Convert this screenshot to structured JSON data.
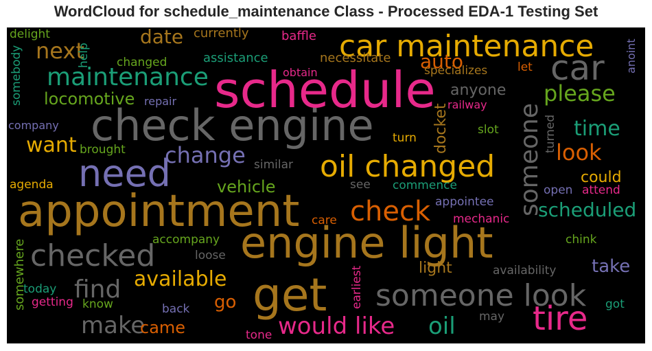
{
  "title": "WordCloud for schedule_maintenance Class - Processed EDA-1 Testing Set",
  "colors": {
    "background": "#000000",
    "palette": [
      "#e7298a",
      "#e6ab02",
      "#a6761d",
      "#666666",
      "#7570b3",
      "#1b9e77",
      "#66a61e",
      "#d95f02"
    ]
  },
  "words": [
    {
      "text": "check engine",
      "color": "#666666"
    },
    {
      "text": "appointment",
      "color": "#a6761d"
    },
    {
      "text": "schedule",
      "color": "#e7298a"
    },
    {
      "text": "engine light",
      "color": "#a6761d"
    },
    {
      "text": "car maintenance",
      "color": "#e6ab02"
    },
    {
      "text": "get",
      "color": "#a6761d"
    },
    {
      "text": "need",
      "color": "#7570b3"
    },
    {
      "text": "car",
      "color": "#666666"
    },
    {
      "text": "oil changed",
      "color": "#e6ab02"
    },
    {
      "text": "someone look",
      "color": "#666666"
    },
    {
      "text": "tire",
      "color": "#e7298a"
    },
    {
      "text": "checked",
      "color": "#666666"
    },
    {
      "text": "maintenance",
      "color": "#1b9e77"
    },
    {
      "text": "someone",
      "color": "#666666"
    },
    {
      "text": "check",
      "color": "#d95f02"
    },
    {
      "text": "please",
      "color": "#66a61e"
    },
    {
      "text": "would like",
      "color": "#e7298a"
    },
    {
      "text": "find",
      "color": "#666666"
    },
    {
      "text": "available",
      "color": "#e6ab02"
    },
    {
      "text": "make",
      "color": "#666666"
    },
    {
      "text": "next",
      "color": "#a6761d"
    },
    {
      "text": "change",
      "color": "#7570b3"
    },
    {
      "text": "want",
      "color": "#e6ab02"
    },
    {
      "text": "oil",
      "color": "#1b9e77"
    },
    {
      "text": "time",
      "color": "#1b9e77"
    },
    {
      "text": "look",
      "color": "#d95f02"
    },
    {
      "text": "date",
      "color": "#a6761d"
    },
    {
      "text": "scheduled",
      "color": "#1b9e77"
    },
    {
      "text": "auto",
      "color": "#d95f02"
    },
    {
      "text": "locomotive",
      "color": "#66a61e"
    },
    {
      "text": "vehicle",
      "color": "#66a61e"
    },
    {
      "text": "take",
      "color": "#7570b3"
    },
    {
      "text": "anyone",
      "color": "#666666"
    },
    {
      "text": "go",
      "color": "#d95f02"
    },
    {
      "text": "could",
      "color": "#e6ab02"
    },
    {
      "text": "came",
      "color": "#d95f02"
    },
    {
      "text": "light",
      "color": "#a6761d"
    },
    {
      "text": "docket",
      "color": "#a6761d"
    },
    {
      "text": "currently",
      "color": "#a6761d"
    },
    {
      "text": "assistance",
      "color": "#1b9e77"
    },
    {
      "text": "necessitate",
      "color": "#a6761d"
    },
    {
      "text": "baffle",
      "color": "#e7298a"
    },
    {
      "text": "specializes",
      "color": "#a6761d"
    },
    {
      "text": "delight",
      "color": "#66a61e"
    },
    {
      "text": "somebody",
      "color": "#1b9e77"
    },
    {
      "text": "help",
      "color": "#1b9e77"
    },
    {
      "text": "changed",
      "color": "#66a61e"
    },
    {
      "text": "obtain",
      "color": "#e7298a"
    },
    {
      "text": "let",
      "color": "#d95f02"
    },
    {
      "text": "anoint",
      "color": "#7570b3"
    },
    {
      "text": "repair",
      "color": "#7570b3"
    },
    {
      "text": "railway",
      "color": "#e7298a"
    },
    {
      "text": "company",
      "color": "#7570b3"
    },
    {
      "text": "brought",
      "color": "#66a61e"
    },
    {
      "text": "slot",
      "color": "#66a61e"
    },
    {
      "text": "turn",
      "color": "#e6ab02"
    },
    {
      "text": "turned",
      "color": "#666666"
    },
    {
      "text": "similar",
      "color": "#666666"
    },
    {
      "text": "agenda",
      "color": "#e6ab02"
    },
    {
      "text": "see",
      "color": "#666666"
    },
    {
      "text": "commence",
      "color": "#1b9e77"
    },
    {
      "text": "open",
      "color": "#7570b3"
    },
    {
      "text": "attend",
      "color": "#e7298a"
    },
    {
      "text": "appointee",
      "color": "#7570b3"
    },
    {
      "text": "care",
      "color": "#d95f02"
    },
    {
      "text": "mechanic",
      "color": "#e7298a"
    },
    {
      "text": "accompany",
      "color": "#66a61e"
    },
    {
      "text": "chink",
      "color": "#66a61e"
    },
    {
      "text": "loose",
      "color": "#666666"
    },
    {
      "text": "availability",
      "color": "#666666"
    },
    {
      "text": "somewhere",
      "color": "#66a61e"
    },
    {
      "text": "today",
      "color": "#1b9e77"
    },
    {
      "text": "getting",
      "color": "#e7298a"
    },
    {
      "text": "know",
      "color": "#66a61e"
    },
    {
      "text": "back",
      "color": "#7570b3"
    },
    {
      "text": "earliest",
      "color": "#e7298a"
    },
    {
      "text": "may",
      "color": "#666666"
    },
    {
      "text": "got",
      "color": "#1b9e77"
    },
    {
      "text": "tone",
      "color": "#e7298a"
    }
  ]
}
